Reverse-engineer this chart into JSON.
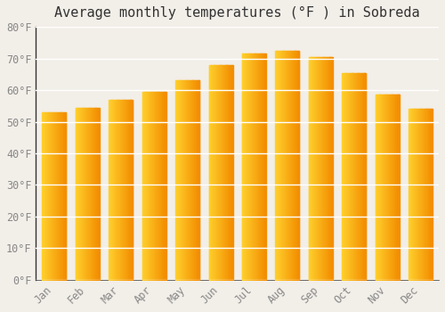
{
  "title": "Average monthly temperatures (°F ) in Sobreda",
  "months": [
    "Jan",
    "Feb",
    "Mar",
    "Apr",
    "May",
    "Jun",
    "Jul",
    "Aug",
    "Sep",
    "Oct",
    "Nov",
    "Dec"
  ],
  "values": [
    53,
    54.5,
    57,
    59.5,
    63,
    68,
    71.5,
    72.5,
    70.5,
    65.5,
    58.5,
    54
  ],
  "ylim": [
    0,
    80
  ],
  "yticks": [
    0,
    10,
    20,
    30,
    40,
    50,
    60,
    70,
    80
  ],
  "bar_color_main": "#FFA500",
  "bar_color_light": "#FFD040",
  "bar_color_dark": "#E08000",
  "background_color": "#F2EEE8",
  "plot_bg_color": "#F2EEE8",
  "grid_color": "#FFFFFF",
  "title_fontsize": 11,
  "tick_fontsize": 8.5,
  "tick_color": "#888888",
  "spine_color": "#333333",
  "font_family": "monospace"
}
